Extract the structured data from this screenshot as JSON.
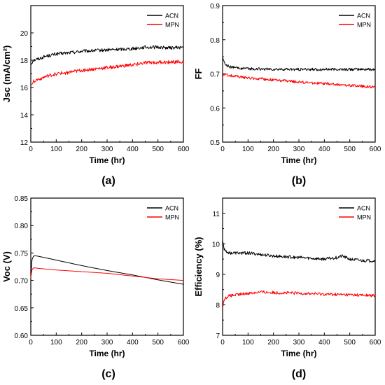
{
  "figure": {
    "panel_labels": [
      "(a)",
      "(b)",
      "(c)",
      "(d)"
    ]
  },
  "colors": {
    "ACN": "#000000",
    "MPN": "#ff0000"
  },
  "legend_placement": "top-right",
  "chart_data": [
    {
      "type": "line",
      "panel": "(a)",
      "xlabel": "Time (hr)",
      "ylabel": "Jsc (mA/cm²)",
      "xlim": [
        0,
        600
      ],
      "ylim": [
        12,
        22
      ],
      "xticks": [
        "0",
        "100",
        "200",
        "300",
        "400",
        "500",
        "600"
      ],
      "yticks": [
        "12",
        "14",
        "16",
        "18",
        "20"
      ],
      "ytick_values": [
        12,
        14,
        16,
        18,
        20
      ],
      "legend": [
        "ACN",
        "MPN"
      ],
      "series": [
        {
          "name": "ACN",
          "x": [
            0,
            10,
            30,
            60,
            100,
            150,
            200,
            250,
            300,
            350,
            400,
            450,
            500,
            550,
            600
          ],
          "y": [
            17.7,
            18.0,
            18.1,
            18.3,
            18.45,
            18.55,
            18.65,
            18.7,
            18.75,
            18.8,
            18.85,
            18.95,
            18.95,
            18.9,
            18.95
          ],
          "noise": 0.12
        },
        {
          "name": "MPN",
          "x": [
            0,
            10,
            30,
            60,
            100,
            150,
            200,
            250,
            300,
            350,
            400,
            450,
            500,
            550,
            600
          ],
          "y": [
            16.2,
            16.45,
            16.6,
            16.8,
            17.0,
            17.1,
            17.25,
            17.35,
            17.45,
            17.55,
            17.65,
            17.8,
            17.85,
            17.85,
            17.9
          ],
          "noise": 0.13
        }
      ]
    },
    {
      "type": "line",
      "panel": "(b)",
      "xlabel": "Time (hr)",
      "ylabel": "FF",
      "xlim": [
        0,
        600
      ],
      "ylim": [
        0.5,
        0.9
      ],
      "xticks": [
        "0",
        "100",
        "200",
        "300",
        "400",
        "500",
        "600"
      ],
      "yticks": [
        "0.5",
        "0.6",
        "0.7",
        "0.8",
        "0.9"
      ],
      "ytick_values": [
        0.5,
        0.6,
        0.7,
        0.8,
        0.9
      ],
      "legend": [
        "ACN",
        "MPN"
      ],
      "series": [
        {
          "name": "ACN",
          "x": [
            0,
            5,
            15,
            30,
            60,
            100,
            200,
            300,
            400,
            500,
            600
          ],
          "y": [
            0.75,
            0.735,
            0.725,
            0.72,
            0.717,
            0.715,
            0.713,
            0.713,
            0.713,
            0.713,
            0.713
          ],
          "noise": 0.004
        },
        {
          "name": "MPN",
          "x": [
            0,
            5,
            15,
            30,
            60,
            100,
            200,
            300,
            400,
            500,
            600
          ],
          "y": [
            0.69,
            0.698,
            0.697,
            0.695,
            0.692,
            0.688,
            0.682,
            0.676,
            0.671,
            0.666,
            0.661
          ],
          "noise": 0.004
        }
      ]
    },
    {
      "type": "line",
      "panel": "(c)",
      "xlabel": "Time (hr)",
      "ylabel": "Voc (V)",
      "xlim": [
        0,
        600
      ],
      "ylim": [
        0.6,
        0.85
      ],
      "xticks": [
        "0",
        "100",
        "200",
        "300",
        "400",
        "500",
        "600"
      ],
      "yticks": [
        "0.60",
        "0.65",
        "0.70",
        "0.75",
        "0.80",
        "0.85"
      ],
      "ytick_values": [
        0.6,
        0.65,
        0.7,
        0.75,
        0.8,
        0.85
      ],
      "legend": [
        "ACN",
        "MPN"
      ],
      "series": [
        {
          "name": "ACN",
          "x": [
            0,
            3,
            8,
            15,
            30,
            100,
            200,
            300,
            400,
            500,
            600
          ],
          "y": [
            0.71,
            0.735,
            0.743,
            0.745,
            0.744,
            0.737,
            0.727,
            0.718,
            0.71,
            0.701,
            0.693
          ],
          "noise": 0
        },
        {
          "name": "MPN",
          "x": [
            0,
            3,
            8,
            15,
            30,
            100,
            200,
            300,
            400,
            500,
            600
          ],
          "y": [
            0.705,
            0.718,
            0.722,
            0.723,
            0.722,
            0.719,
            0.716,
            0.713,
            0.708,
            0.703,
            0.7
          ],
          "noise": 0
        }
      ]
    },
    {
      "type": "line",
      "panel": "(d)",
      "xlabel": "Time (hr)",
      "ylabel": "Efficiency (%)",
      "xlim": [
        0,
        600
      ],
      "ylim": [
        7,
        11.5
      ],
      "xticks": [
        "0",
        "100",
        "200",
        "300",
        "400",
        "500",
        "600"
      ],
      "yticks": [
        "7",
        "8",
        "9",
        "10",
        "11"
      ],
      "ytick_values": [
        7,
        8,
        9,
        10,
        11
      ],
      "legend": [
        "ACN",
        "MPN"
      ],
      "series": [
        {
          "name": "ACN",
          "x": [
            0,
            5,
            15,
            30,
            60,
            100,
            200,
            300,
            400,
            450,
            470,
            500,
            550,
            600
          ],
          "y": [
            10.1,
            9.85,
            9.75,
            9.7,
            9.7,
            9.7,
            9.6,
            9.55,
            9.5,
            9.55,
            9.6,
            9.5,
            9.45,
            9.45
          ],
          "noise": 0.05
        },
        {
          "name": "MPN",
          "x": [
            0,
            5,
            15,
            30,
            60,
            100,
            150,
            200,
            300,
            400,
            500,
            600
          ],
          "y": [
            7.9,
            8.15,
            8.25,
            8.3,
            8.33,
            8.38,
            8.42,
            8.4,
            8.38,
            8.35,
            8.33,
            8.3
          ],
          "noise": 0.05
        }
      ]
    }
  ]
}
